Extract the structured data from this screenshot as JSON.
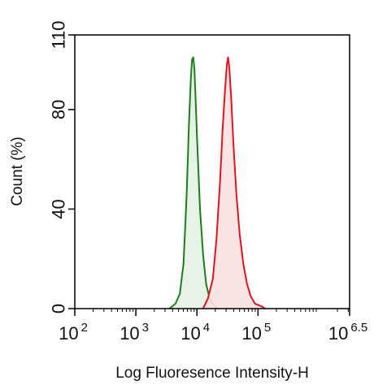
{
  "chart_data": {
    "type": "area",
    "title": "",
    "xlabel": "Log Fluoresence Intensity-H",
    "ylabel": "Count  (%)",
    "xscale": "log10",
    "xlim": [
      2,
      6.5
    ],
    "ylim": [
      0,
      110
    ],
    "y_ticks": [
      0,
      40,
      80,
      110
    ],
    "x_ticks": [
      {
        "base": "10",
        "exp": "2",
        "value": 2
      },
      {
        "base": "10",
        "exp": "3",
        "value": 3
      },
      {
        "base": "10",
        "exp": "4",
        "value": 4
      },
      {
        "base": "10",
        "exp": "5",
        "value": 5
      },
      {
        "base": "10",
        "exp": "6.5",
        "value": 6.5
      }
    ],
    "grid": false,
    "legend": "none",
    "series": [
      {
        "color": "#1a7f1a",
        "fill": "#e6f2e6",
        "x": [
          3.55,
          3.65,
          3.72,
          3.78,
          3.83,
          3.87,
          3.9,
          3.92,
          3.94,
          3.96,
          4.0,
          4.05,
          4.1,
          4.15,
          4.2,
          4.25,
          4.3,
          4.35
        ],
        "values": [
          0,
          2,
          6,
          18,
          45,
          75,
          92,
          100,
          101,
          96,
          70,
          40,
          22,
          10,
          5,
          2,
          1,
          0
        ]
      },
      {
        "color": "#e0141e",
        "fill": "#fbe1e1",
        "x": [
          4.1,
          4.18,
          4.26,
          4.32,
          4.38,
          4.42,
          4.46,
          4.49,
          4.51,
          4.53,
          4.56,
          4.6,
          4.65,
          4.7,
          4.76,
          4.82,
          4.88,
          4.95,
          5.05,
          5.12
        ],
        "values": [
          0,
          4,
          12,
          28,
          52,
          72,
          88,
          98,
          101,
          97,
          85,
          65,
          45,
          30,
          18,
          10,
          5,
          2,
          1,
          0
        ]
      }
    ]
  }
}
